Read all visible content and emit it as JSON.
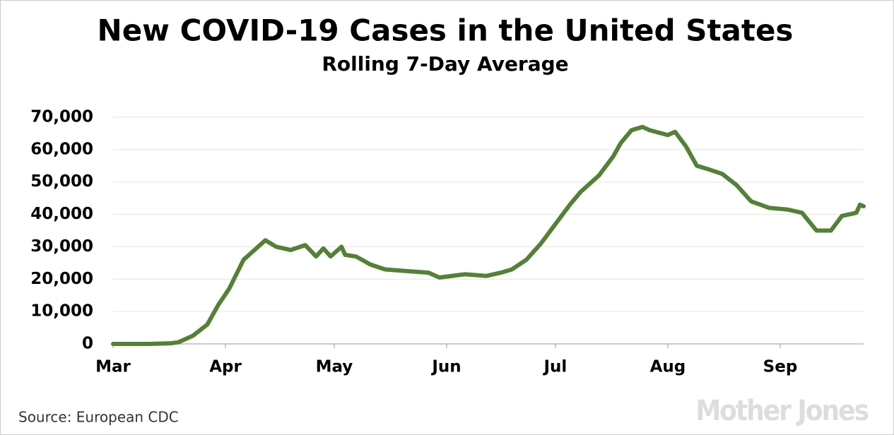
{
  "chart_data": {
    "type": "line",
    "title": "New COVID-19 Cases in the United States",
    "subtitle": "Rolling 7-Day Average",
    "source": "Source: European CDC",
    "logo": "Mother Jones",
    "x": [
      0,
      10,
      16,
      18,
      22,
      26,
      29,
      32,
      36,
      40,
      42,
      45,
      49,
      53,
      56,
      58,
      60,
      63,
      64,
      67,
      71,
      75,
      81,
      87,
      90,
      97,
      103,
      107,
      110,
      114,
      118,
      122,
      126,
      129,
      134,
      138,
      140,
      143,
      146,
      148,
      153,
      155,
      158,
      161,
      164,
      168,
      172,
      176,
      181,
      186,
      190,
      194,
      198,
      201,
      205,
      206,
      207
    ],
    "series": [
      {
        "name": "New cases",
        "color": "#538135",
        "values": [
          0,
          0,
          200,
          500,
          2500,
          6000,
          12000,
          17000,
          26000,
          30000,
          32000,
          30000,
          29000,
          30500,
          27000,
          29500,
          27000,
          30000,
          27500,
          27000,
          24500,
          23000,
          22500,
          22000,
          20500,
          21500,
          21000,
          22000,
          23000,
          26000,
          31000,
          37000,
          43000,
          47000,
          52000,
          58000,
          62000,
          66000,
          67000,
          66000,
          64500,
          65500,
          61000,
          55000,
          54000,
          52500,
          49000,
          44000,
          42000,
          41500,
          40500,
          35000,
          35000,
          39500,
          40500,
          43000,
          42500
        ]
      }
    ],
    "xlim": [
      0,
      207
    ],
    "xticks": [
      {
        "value": 0,
        "label": "Mar"
      },
      {
        "value": 31,
        "label": "Apr"
      },
      {
        "value": 61,
        "label": "May"
      },
      {
        "value": 92,
        "label": "Jun"
      },
      {
        "value": 122,
        "label": "Jul"
      },
      {
        "value": 153,
        "label": "Aug"
      },
      {
        "value": 184,
        "label": "Sep"
      }
    ],
    "ylim": [
      0,
      70000
    ],
    "yticks": [
      0,
      {
        "value": 10000,
        "label": "10,000"
      },
      {
        "value": 20000,
        "label": "20,000"
      },
      {
        "value": 30000,
        "label": "30,000"
      },
      {
        "value": 40000,
        "label": "40,000"
      },
      {
        "value": 50000,
        "label": "50,000"
      },
      {
        "value": 60000,
        "label": "60,000"
      },
      {
        "value": 70000,
        "label": "70,000"
      }
    ],
    "grid": true
  }
}
